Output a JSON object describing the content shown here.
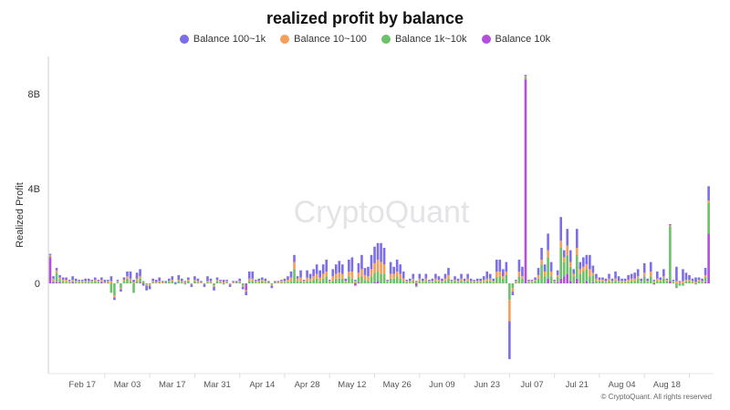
{
  "chart_data": {
    "type": "bar",
    "stacked": true,
    "title": "realized profit by balance",
    "ylabel": "Realized Profit",
    "xlabel": "",
    "unit": "B",
    "x_range": [
      "Feb 07",
      "Aug 30"
    ],
    "x_interval": "1 day",
    "x_ticks": [
      "Feb 17",
      "Mar 03",
      "Mar 17",
      "Mar 31",
      "Apr 14",
      "Apr 28",
      "May 12",
      "May 26",
      "Jun 09",
      "Jun 23",
      "Jul 07",
      "Jul 21",
      "Aug 04",
      "Aug 18"
    ],
    "y_ticks": [
      {
        "value": 0,
        "label": "0"
      },
      {
        "value": 4,
        "label": "4B"
      },
      {
        "value": 8,
        "label": "8B"
      }
    ],
    "ylim": [
      -3.8,
      9.5
    ],
    "grid": false,
    "legend_position": "top",
    "watermark": "CryptoQuant",
    "series": [
      {
        "name": "Balance 100~1k",
        "color": "#7b6ee8",
        "values": [
          0.05,
          0.1,
          0.1,
          0.1,
          0.1,
          0.1,
          0.05,
          0.15,
          0.1,
          0.05,
          0.05,
          0.1,
          0.1,
          0.05,
          0.1,
          0.05,
          0.1,
          0.1,
          0.05,
          0.2,
          -0.1,
          0.05,
          -0.1,
          0.1,
          0.2,
          0.3,
          0.1,
          0.25,
          0.3,
          -0.1,
          -0.2,
          -0.15,
          0.1,
          0.1,
          0.15,
          0.05,
          0.05,
          0.1,
          0.15,
          0.05,
          0.2,
          0.1,
          0.05,
          0.1,
          -0.1,
          0.15,
          0.1,
          0.05,
          -0.1,
          0.2,
          0.1,
          -0.15,
          0.1,
          0.05,
          0.1,
          0.05,
          -0.1,
          0.05,
          0.05,
          0.1,
          -0.1,
          -0.15,
          0.3,
          0.3,
          0.05,
          0.1,
          0.1,
          0.1,
          0.05,
          -0.1,
          0.05,
          0.05,
          0.05,
          0.1,
          0.15,
          0.25,
          0.3,
          0.1,
          0.3,
          0.05,
          0.3,
          0.2,
          0.3,
          0.4,
          0.3,
          0.4,
          0.5,
          0.05,
          0.3,
          0.4,
          0.5,
          0.4,
          0.1,
          0.5,
          0.6,
          0.05,
          0.4,
          0.6,
          0.3,
          0.4,
          0.6,
          0.7,
          0.7,
          0.8,
          0.7,
          0.05,
          0.5,
          0.3,
          0.5,
          0.4,
          0.3,
          0.05,
          0.1,
          0.2,
          0.05,
          0.2,
          0.1,
          0.2,
          0.05,
          0.1,
          0.2,
          0.15,
          0.1,
          0.2,
          0.3,
          0.05,
          0.15,
          0.1,
          0.2,
          0.1,
          0.2,
          0.1,
          0.05,
          0.1,
          0.1,
          0.15,
          0.3,
          0.2,
          0.1,
          0.5,
          0.5,
          0.3,
          0.4,
          -1.6,
          -0.15,
          0.05,
          0.5,
          0.4,
          0.05,
          0.05,
          0.05,
          0.1,
          0.3,
          0.5,
          0.3,
          0.7,
          0.4,
          0.05,
          0.2,
          1.0,
          0.3,
          0.7,
          0.5,
          0.2,
          0.8,
          0.3,
          0.4,
          0.4,
          0.6,
          0.3,
          0.2,
          0.1,
          0.1,
          0.1,
          0.2,
          0.1,
          0.3,
          0.2,
          0.1,
          0.1,
          0.2,
          0.2,
          0.25,
          0.3,
          0.1,
          0.4,
          0.1,
          0.4,
          0.05,
          0.3,
          0.1,
          0.3,
          0.05,
          0.05,
          0.05,
          0.6,
          0.05,
          0.5,
          0.3,
          0.2,
          0.1,
          0.2,
          0.1,
          0.1,
          0.3,
          0.6
        ]
      },
      {
        "name": "Balance 10~100",
        "color": "#f59e5c",
        "values": [
          0.05,
          0.1,
          0.1,
          0.1,
          0.05,
          0.1,
          0.05,
          0.05,
          0.05,
          0.05,
          0.05,
          0.05,
          0.05,
          0.05,
          0.05,
          0.05,
          0.05,
          0.05,
          0.05,
          0.1,
          -0.1,
          0.05,
          -0.05,
          0.05,
          0.1,
          0.1,
          0.05,
          0.1,
          0.1,
          0,
          -0.05,
          -0.05,
          0.05,
          0.05,
          0.05,
          0.05,
          0,
          0.05,
          0.05,
          0,
          0.05,
          0.05,
          0.05,
          0.05,
          -0.05,
          0.05,
          0.05,
          0.05,
          0,
          0.05,
          0.05,
          -0.05,
          0.05,
          0.05,
          0.05,
          0.05,
          -0.05,
          0.05,
          0,
          0.05,
          -0.05,
          -0.05,
          0.1,
          0.1,
          0.05,
          0.05,
          0.05,
          0.05,
          0,
          -0.05,
          0,
          0.05,
          0.05,
          0.05,
          0.1,
          0.15,
          0.3,
          0.1,
          0.15,
          0.05,
          0.15,
          0.1,
          0.15,
          0.2,
          0.15,
          0.2,
          0.2,
          0.05,
          0.2,
          0.2,
          0.25,
          0.2,
          0.05,
          0.2,
          0.3,
          0.05,
          0.2,
          0.3,
          0.2,
          0.2,
          0.3,
          0.4,
          0.5,
          0.5,
          0.4,
          0.05,
          0.2,
          0.2,
          0.2,
          0.2,
          0.1,
          0.05,
          0.05,
          0.1,
          0.05,
          0.1,
          0.05,
          0.1,
          0.05,
          0.05,
          0.1,
          0.05,
          0.05,
          0.1,
          0.15,
          0.05,
          0.05,
          0.05,
          0.1,
          0.05,
          0.1,
          0.05,
          0.05,
          0.05,
          0.05,
          0.1,
          0.1,
          0.1,
          0.05,
          0.25,
          0.2,
          0.1,
          0.15,
          -0.9,
          -0.15,
          0.05,
          0.2,
          0.1,
          0.05,
          0.05,
          0.05,
          0.05,
          0.15,
          0.2,
          0.2,
          0.3,
          0.2,
          0.05,
          0.1,
          0.3,
          0.2,
          0.4,
          0.2,
          0.1,
          0.3,
          0.2,
          0.2,
          0.2,
          0.3,
          0.1,
          0.1,
          0.05,
          0.05,
          0.05,
          0.1,
          0.05,
          0.1,
          0.05,
          0.05,
          0.05,
          0.1,
          0.1,
          0.1,
          0.1,
          0.05,
          0.15,
          0.05,
          0.2,
          0.05,
          0.1,
          0.05,
          0.1,
          0.05,
          0.05,
          0.05,
          0.1,
          0.05,
          0.1,
          0.05,
          0.05,
          0.05,
          0.05,
          0.05,
          0.05,
          0.1,
          0.1
        ]
      },
      {
        "name": "Balance 1k~10k",
        "color": "#6cc16a",
        "values": [
          0.05,
          0.05,
          0.4,
          0.1,
          0.1,
          0.05,
          0.05,
          0.05,
          0.05,
          0.05,
          0.05,
          0.05,
          0.05,
          0.05,
          0.1,
          0.05,
          0.05,
          0,
          0.05,
          -0.4,
          -0.5,
          0.05,
          -0.2,
          0.1,
          0.2,
          0.1,
          -0.4,
          0.1,
          0.15,
          0.1,
          -0.05,
          -0.05,
          0.05,
          0,
          0.05,
          0,
          0.05,
          0.05,
          0.1,
          -0.05,
          0.1,
          0.05,
          -0.05,
          0.1,
          0,
          0.1,
          0.05,
          0,
          -0.05,
          0.05,
          0.05,
          -0.1,
          0.1,
          0.05,
          -0.05,
          0.05,
          0,
          0,
          0.05,
          0.05,
          -0.1,
          0,
          0.1,
          0.1,
          0.05,
          0.05,
          0.1,
          0.05,
          0.05,
          -0.05,
          0.05,
          0,
          0.05,
          0.05,
          0.05,
          0.1,
          0.6,
          0.1,
          0.1,
          0.05,
          0.1,
          0.1,
          0.15,
          0.2,
          0.1,
          0.2,
          0.3,
          0.05,
          0.1,
          0.2,
          0.2,
          0.2,
          0.05,
          0.3,
          0.2,
          0.05,
          0.2,
          0.3,
          0.15,
          0.1,
          0.3,
          0.4,
          0.4,
          0.4,
          0.4,
          0.05,
          0.2,
          0.2,
          0.3,
          0.2,
          0.1,
          0.05,
          0.05,
          0.1,
          -0.05,
          0.1,
          0.05,
          0.1,
          0.05,
          0.05,
          0.1,
          0.1,
          0.05,
          0.1,
          0.2,
          0.05,
          0.1,
          0.05,
          0.1,
          0.05,
          0.1,
          0.05,
          0.05,
          0.05,
          0.05,
          0.05,
          0.1,
          0.1,
          0.05,
          0.25,
          0.3,
          0.2,
          0.35,
          -0.7,
          -0.2,
          0.05,
          0.3,
          0.2,
          0.1,
          0.05,
          0.05,
          0.1,
          0.2,
          0.8,
          0.3,
          0.9,
          0.3,
          0.05,
          0.2,
          1.3,
          0.6,
          0.8,
          0.6,
          0.3,
          1.0,
          0.4,
          0.5,
          0.5,
          0.3,
          0.3,
          0.1,
          0.1,
          0.1,
          0.05,
          0.1,
          0.05,
          0.1,
          0.05,
          0.05,
          0.05,
          0.05,
          0.1,
          0.1,
          0.2,
          0.05,
          0.3,
          0.05,
          0.3,
          0.05,
          0.1,
          0.1,
          0.2,
          0.1,
          2.3,
          0.05,
          -0.2,
          -0.1,
          -0.1,
          0.1,
          0.1,
          0.05,
          -0.05,
          0.1,
          0.05,
          0.2,
          1.3
        ]
      },
      {
        "name": "Balance 10k",
        "color": "#b44fdc",
        "values": [
          1.1,
          0.05,
          0.05,
          0.05,
          0,
          0,
          0,
          0.05,
          0,
          0,
          0,
          0,
          0,
          0,
          0,
          0,
          0.05,
          0,
          0,
          0,
          0,
          0,
          0,
          0,
          0,
          0,
          0,
          0,
          0.05,
          0,
          0,
          0,
          0,
          0,
          0,
          0,
          0,
          0,
          0,
          0,
          0,
          0,
          0,
          0,
          0,
          0,
          0,
          0,
          0,
          0,
          0,
          0,
          0,
          0,
          0,
          0,
          0,
          0,
          0,
          0,
          0,
          -0.3,
          0,
          0,
          0,
          0,
          0,
          0,
          0,
          0,
          0,
          0,
          0,
          0,
          0,
          0,
          0,
          0,
          0,
          0,
          0,
          0,
          0,
          0,
          0,
          0,
          0,
          0,
          0,
          0,
          0,
          0,
          0,
          0,
          0,
          -0.1,
          0.05,
          0,
          0,
          0,
          0,
          0.05,
          0.1,
          0,
          0,
          0,
          0,
          0,
          0,
          0,
          0,
          0,
          0,
          0,
          -0.1,
          0,
          0,
          0,
          0,
          0,
          0,
          0,
          0,
          0,
          0,
          0,
          0,
          0,
          0,
          0,
          0,
          0,
          0,
          0,
          0,
          0,
          0,
          0,
          0,
          0,
          0,
          0,
          0,
          0,
          0,
          0,
          0,
          0,
          8.6,
          0,
          0,
          0,
          0,
          0,
          0,
          0.2,
          0,
          0,
          0.05,
          0.2,
          0.3,
          0.4,
          0.1,
          0,
          0.2,
          0,
          0,
          0.1,
          0,
          0.05,
          0,
          0,
          0,
          0,
          0,
          0,
          0,
          0,
          0,
          0,
          0,
          0,
          0,
          0,
          0,
          0,
          0,
          0,
          -0.05,
          0,
          0,
          0,
          0,
          0.1,
          0,
          0,
          0,
          0,
          0,
          0,
          0,
          0,
          0,
          0,
          0.05,
          2.1
        ]
      }
    ]
  },
  "footer": {
    "copyright": "© CryptoQuant. All rights reserved"
  }
}
